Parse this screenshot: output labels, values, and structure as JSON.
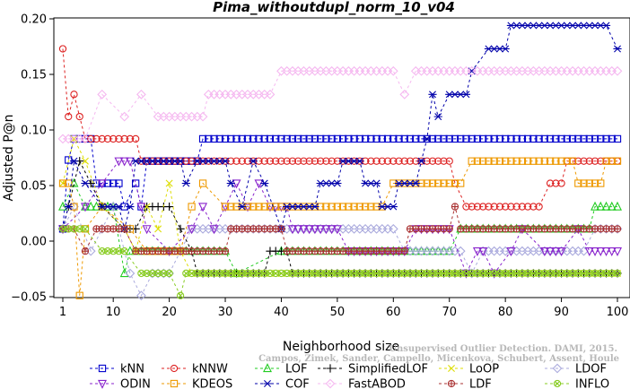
{
  "chart_data": {
    "type": "line",
    "title": "Pima_withoutdupl_norm_10_v04",
    "xlabel": "Neighborhood size",
    "ylabel": "Adjusted P@n",
    "xlim": [
      1,
      100
    ],
    "ylim": [
      -0.05,
      0.2
    ],
    "xticks": [
      1,
      10,
      20,
      30,
      40,
      50,
      60,
      70,
      80,
      90,
      100
    ],
    "yticks": [
      -0.05,
      0.0,
      0.05,
      0.1,
      0.15,
      0.2
    ],
    "xtick_labels": [
      "1",
      "10",
      "20",
      "30",
      "40",
      "50",
      "60",
      "70",
      "80",
      "90",
      "100"
    ],
    "ytick_labels": [
      "−0.05",
      "0.00",
      "0.05",
      "0.10",
      "0.15",
      "0.20"
    ],
    "legend_position": "bottom",
    "grid": false,
    "watermark": [
      "Unsupervised Outlier Detection. DAMI, 2015.",
      "Campos, Zimek, Sander, Campello, Micenkova, Schubert, Assent, Houle"
    ],
    "series": [
      {
        "name": "kNN",
        "color": "#0000cc",
        "marker": "square",
        "points": [
          [
            1,
            0.011
          ],
          [
            2,
            0.073
          ],
          [
            3,
            0.092
          ],
          [
            6,
            0.092
          ],
          [
            7,
            0.052
          ],
          [
            11,
            0.052
          ],
          [
            12,
            0.031
          ],
          [
            14,
            0.052
          ],
          [
            15,
            0.031
          ],
          [
            16,
            0.072
          ],
          [
            25,
            0.072
          ],
          [
            26,
            0.092
          ],
          [
            100,
            0.092
          ]
        ]
      },
      {
        "name": "kNNW",
        "color": "#dd2222",
        "marker": "circle",
        "points": [
          [
            1,
            0.173
          ],
          [
            2,
            0.112
          ],
          [
            3,
            0.132
          ],
          [
            4,
            0.112
          ],
          [
            5,
            0.092
          ],
          [
            14,
            0.092
          ],
          [
            15,
            0.072
          ],
          [
            70,
            0.072
          ],
          [
            71,
            0.052
          ],
          [
            73,
            0.031
          ],
          [
            86,
            0.031
          ],
          [
            88,
            0.052
          ],
          [
            90,
            0.052
          ],
          [
            91,
            0.072
          ],
          [
            100,
            0.072
          ]
        ]
      },
      {
        "name": "LOF",
        "color": "#22cc22",
        "marker": "triangle",
        "points": [
          [
            1,
            0.031
          ],
          [
            3,
            0.052
          ],
          [
            5,
            0.031
          ],
          [
            10,
            0.031
          ],
          [
            12,
            -0.029
          ],
          [
            13,
            -0.009
          ],
          [
            30,
            -0.009
          ],
          [
            32,
            -0.029
          ],
          [
            40,
            -0.009
          ],
          [
            70,
            -0.009
          ],
          [
            72,
            0.011
          ],
          [
            95,
            0.011
          ],
          [
            96,
            0.031
          ],
          [
            100,
            0.031
          ]
        ]
      },
      {
        "name": "SimplifiedLOF",
        "color": "#000000",
        "marker": "plus",
        "points": [
          [
            1,
            0.011
          ],
          [
            2,
            0.031
          ],
          [
            4,
            0.072
          ],
          [
            6,
            0.052
          ],
          [
            8,
            0.031
          ],
          [
            12,
            0.011
          ],
          [
            14,
            0.011
          ],
          [
            16,
            0.031
          ],
          [
            20,
            0.031
          ],
          [
            22,
            0.011
          ],
          [
            24,
            -0.009
          ],
          [
            25,
            -0.029
          ],
          [
            37,
            -0.029
          ],
          [
            38,
            -0.009
          ],
          [
            41,
            -0.009
          ],
          [
            42,
            -0.029
          ],
          [
            100,
            -0.029
          ]
        ]
      },
      {
        "name": "LoOP",
        "color": "#dddd00",
        "marker": "x",
        "points": [
          [
            1,
            0.052
          ],
          [
            3,
            0.092
          ],
          [
            5,
            0.072
          ],
          [
            8,
            0.031
          ],
          [
            12,
            0.011
          ],
          [
            14,
            -0.009
          ],
          [
            16,
            0.031
          ],
          [
            18,
            0.011
          ],
          [
            20,
            0.052
          ],
          [
            22,
            -0.009
          ],
          [
            24,
            -0.029
          ],
          [
            100,
            -0.029
          ]
        ]
      },
      {
        "name": "LDOF",
        "color": "#aaaadd",
        "marker": "diamond",
        "points": [
          [
            1,
            0.011
          ],
          [
            3,
            0.031
          ],
          [
            6,
            -0.009
          ],
          [
            8,
            0.011
          ],
          [
            10,
            0.031
          ],
          [
            13,
            -0.029
          ],
          [
            15,
            -0.049
          ],
          [
            17,
            -0.029
          ],
          [
            20,
            -0.029
          ],
          [
            22,
            -0.009
          ],
          [
            24,
            0.011
          ],
          [
            60,
            0.011
          ],
          [
            62,
            -0.009
          ],
          [
            72,
            -0.009
          ],
          [
            74,
            -0.029
          ],
          [
            76,
            -0.009
          ],
          [
            94,
            -0.009
          ],
          [
            96,
            0.011
          ],
          [
            100,
            0.011
          ]
        ]
      },
      {
        "name": "ODIN",
        "color": "#8822cc",
        "marker": "triangledown",
        "points": [
          [
            1,
            0.011
          ],
          [
            5,
            0.031
          ],
          [
            8,
            0.052
          ],
          [
            11,
            0.072
          ],
          [
            13,
            0.072
          ],
          [
            15,
            0.031
          ],
          [
            16,
            0.011
          ],
          [
            20,
            -0.009
          ],
          [
            24,
            0.011
          ],
          [
            26,
            0.031
          ],
          [
            28,
            0.011
          ],
          [
            30,
            0.031
          ],
          [
            32,
            0.052
          ],
          [
            34,
            0.031
          ],
          [
            36,
            0.052
          ],
          [
            38,
            0.031
          ],
          [
            41,
            0.031
          ],
          [
            42,
            0.011
          ],
          [
            50,
            0.011
          ],
          [
            52,
            -0.009
          ],
          [
            62,
            -0.009
          ],
          [
            64,
            0.011
          ],
          [
            70,
            0.011
          ],
          [
            73,
            -0.029
          ],
          [
            75,
            -0.009
          ],
          [
            76,
            -0.009
          ],
          [
            78,
            -0.029
          ],
          [
            81,
            -0.009
          ],
          [
            83,
            0.011
          ],
          [
            87,
            -0.009
          ],
          [
            90,
            -0.009
          ],
          [
            93,
            0.011
          ],
          [
            95,
            -0.009
          ],
          [
            98,
            -0.009
          ],
          [
            100,
            -0.009
          ]
        ]
      },
      {
        "name": "KDEOS",
        "color": "#ee9900",
        "marker": "square",
        "points": [
          [
            1,
            0.052
          ],
          [
            2,
            0.052
          ],
          [
            3,
            0.031
          ],
          [
            4,
            -0.049
          ],
          [
            5,
            0.011
          ],
          [
            8,
            0.031
          ],
          [
            13,
            0.011
          ],
          [
            16,
            -0.009
          ],
          [
            22,
            -0.009
          ],
          [
            24,
            0.031
          ],
          [
            26,
            0.052
          ],
          [
            30,
            0.031
          ],
          [
            55,
            0.031
          ],
          [
            58,
            0.031
          ],
          [
            60,
            0.052
          ],
          [
            66,
            0.052
          ],
          [
            68,
            0.052
          ],
          [
            72,
            0.052
          ],
          [
            74,
            0.072
          ],
          [
            92,
            0.072
          ],
          [
            93,
            0.052
          ],
          [
            97,
            0.052
          ],
          [
            98,
            0.072
          ],
          [
            100,
            0.072
          ]
        ]
      },
      {
        "name": "COF",
        "color": "#0000aa",
        "marker": "asterisk",
        "points": [
          [
            1,
            0.011
          ],
          [
            2,
            0.031
          ],
          [
            3,
            0.072
          ],
          [
            5,
            0.052
          ],
          [
            8,
            0.031
          ],
          [
            11,
            0.031
          ],
          [
            12,
            0.011
          ],
          [
            13,
            0.031
          ],
          [
            14,
            0.072
          ],
          [
            22,
            0.072
          ],
          [
            23,
            0.052
          ],
          [
            25,
            0.072
          ],
          [
            30,
            0.072
          ],
          [
            31,
            0.052
          ],
          [
            33,
            0.031
          ],
          [
            35,
            0.072
          ],
          [
            37,
            0.052
          ],
          [
            40,
            0.011
          ],
          [
            41,
            0.031
          ],
          [
            46,
            0.031
          ],
          [
            47,
            0.052
          ],
          [
            50,
            0.052
          ],
          [
            51,
            0.072
          ],
          [
            54,
            0.072
          ],
          [
            55,
            0.052
          ],
          [
            57,
            0.052
          ],
          [
            58,
            0.031
          ],
          [
            60,
            0.031
          ],
          [
            61,
            0.052
          ],
          [
            64,
            0.052
          ],
          [
            65,
            0.072
          ],
          [
            66,
            0.092
          ],
          [
            67,
            0.132
          ],
          [
            68,
            0.112
          ],
          [
            70,
            0.132
          ],
          [
            73,
            0.132
          ],
          [
            74,
            0.153
          ],
          [
            77,
            0.173
          ],
          [
            80,
            0.173
          ],
          [
            81,
            0.194
          ],
          [
            98,
            0.194
          ],
          [
            100,
            0.173
          ]
        ]
      },
      {
        "name": "FastABOD",
        "color": "#f5b8f0",
        "marker": "diamond",
        "points": [
          [
            1,
            0.092
          ],
          [
            5,
            0.092
          ],
          [
            8,
            0.132
          ],
          [
            12,
            0.112
          ],
          [
            15,
            0.132
          ],
          [
            18,
            0.112
          ],
          [
            26,
            0.112
          ],
          [
            27,
            0.132
          ],
          [
            38,
            0.132
          ],
          [
            40,
            0.153
          ],
          [
            60,
            0.153
          ],
          [
            62,
            0.132
          ],
          [
            64,
            0.153
          ],
          [
            100,
            0.153
          ]
        ]
      },
      {
        "name": "LDF",
        "color": "#aa3333",
        "marker": "circleplus",
        "points": [
          [
            1,
            0.011
          ],
          [
            3,
            0.011
          ],
          [
            5,
            -0.009
          ],
          [
            7,
            0.011
          ],
          [
            12,
            0.011
          ],
          [
            14,
            -0.009
          ],
          [
            24,
            -0.009
          ],
          [
            25,
            -0.009
          ],
          [
            30,
            -0.009
          ],
          [
            31,
            0.011
          ],
          [
            40,
            0.011
          ],
          [
            41,
            -0.009
          ],
          [
            60,
            -0.009
          ],
          [
            62,
            -0.009
          ],
          [
            63,
            0.011
          ],
          [
            70,
            0.011
          ],
          [
            71,
            0.031
          ],
          [
            72,
            0.011
          ],
          [
            100,
            0.011
          ]
        ]
      },
      {
        "name": "INFLO",
        "color": "#88cc22",
        "marker": "circlex",
        "points": [
          [
            1,
            0.011
          ],
          [
            5,
            0.011
          ],
          [
            8,
            -0.009
          ],
          [
            12,
            -0.009
          ],
          [
            15,
            -0.029
          ],
          [
            18,
            -0.029
          ],
          [
            20,
            -0.029
          ],
          [
            22,
            -0.049
          ],
          [
            23,
            -0.029
          ],
          [
            100,
            -0.029
          ]
        ]
      }
    ]
  }
}
